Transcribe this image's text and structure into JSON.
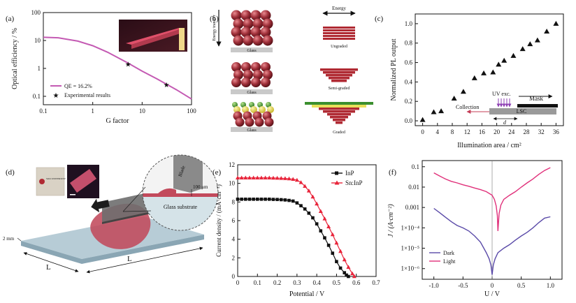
{
  "panels": {
    "a": {
      "letter": "(a)",
      "ylabel": "Optical efficiency / %",
      "xlabel": "G factor",
      "xticks": [
        "0.1",
        "1",
        "10",
        "100"
      ],
      "yticks": [
        "0.1",
        "1",
        "10",
        "100"
      ],
      "legend": [
        "QE = 16.2%",
        "Experimental results"
      ],
      "colors": {
        "line": "#c45ab3",
        "photo_bg": "#3a1420",
        "photo_slab": "#e0506a"
      }
    },
    "b": {
      "letter": "(b)",
      "energy_label": "Energy",
      "transfer_label": "Energy transfer",
      "glass_label": "Glass",
      "row_labels": [
        "Ungraded",
        "Semi-graded",
        "Graded"
      ],
      "colors": {
        "red": "#b02a33",
        "yellow": "#e9e15a",
        "green": "#3b8f2e",
        "sphere": "#a0303a"
      }
    },
    "c": {
      "letter": "(c)",
      "ylabel": "Normalized PL output",
      "xlabel": "Illumination area / cm²",
      "xticks": [
        "0",
        "4",
        "8",
        "12",
        "16",
        "20",
        "24",
        "28",
        "32",
        "36"
      ],
      "yticks": [
        "0.0",
        "0.2",
        "0.4",
        "0.6",
        "0.8",
        "1.0"
      ],
      "labels": {
        "uv": "UV exc.",
        "collection": "Collection",
        "mask": "Mask",
        "lsc": "LSC",
        "d": "d"
      },
      "colors": {
        "uv": "#8e3fb3",
        "collection": "#c43d56",
        "lsc": "#9a9a9a"
      }
    },
    "d": {
      "letter": "(d)",
      "blade": "Blade",
      "thickness": "100 μm",
      "substrate": "Glass substrate",
      "height": "2 mm",
      "length": "L",
      "logo_text": "SOO UNIVERSITY",
      "colors": {
        "glass_top": "#b7ccd6",
        "glass_side": "#8aa6b4",
        "film": "#c24a5c",
        "zoom_bg": "#d5e3e8"
      }
    },
    "e": {
      "letter": "(e)",
      "ylabel": "Current density / (mA·cm⁻²)",
      "xlabel": "Potential / V",
      "xticks": [
        "0",
        "0.1",
        "0.2",
        "0.3",
        "0.4",
        "0.5",
        "0.6",
        "0.7"
      ],
      "yticks": [
        "0",
        "2",
        "4",
        "6",
        "8",
        "10",
        "12"
      ],
      "legend": [
        "InP",
        "Sn:InP"
      ],
      "colors": {
        "inp": "#111111",
        "sninp": "#e8243a"
      }
    },
    "f": {
      "letter": "(f)",
      "ylabel": "J / (A·cm⁻²)",
      "xlabel": "U / V",
      "xticks": [
        "-1.0",
        "-0.5",
        "0",
        "0.5",
        "1.0"
      ],
      "yticks": [
        "0.1",
        "0.01",
        "0.001",
        "1×10⁻⁴",
        "1×10⁻⁵",
        "1×10⁻⁶"
      ],
      "legend": [
        "Dark",
        "Light"
      ],
      "colors": {
        "dark": "#5a4aa8",
        "light": "#e0307a"
      }
    }
  },
  "chart_data": [
    {
      "panel": "a",
      "type": "line",
      "xlabel": "G factor",
      "ylabel": "Optical efficiency / %",
      "xscale": "log",
      "yscale": "log",
      "xlim": [
        0.1,
        100
      ],
      "ylim": [
        0.05,
        100
      ],
      "series": [
        {
          "name": "QE = 16.2%",
          "x": [
            0.1,
            0.2,
            0.5,
            1,
            2,
            5,
            10,
            20,
            50,
            100
          ],
          "y": [
            13,
            12.5,
            9.5,
            6.5,
            3.8,
            1.6,
            0.8,
            0.42,
            0.17,
            0.08
          ]
        },
        {
          "name": "Experimental results",
          "x": [
            5.2,
            31
          ],
          "y": [
            1.4,
            0.26
          ]
        }
      ]
    },
    {
      "panel": "c",
      "type": "scatter",
      "xlabel": "Illumination area / cm²",
      "ylabel": "Normalized PL output",
      "xlim": [
        -2,
        38
      ],
      "ylim": [
        -0.05,
        1.1
      ],
      "x": [
        0,
        3,
        5,
        8.5,
        11,
        14,
        16.5,
        19,
        20.5,
        22,
        24.5,
        27,
        29,
        31,
        33.5,
        36
      ],
      "y": [
        0.01,
        0.09,
        0.1,
        0.23,
        0.3,
        0.44,
        0.49,
        0.5,
        0.58,
        0.62,
        0.67,
        0.74,
        0.79,
        0.83,
        0.92,
        1.0
      ]
    },
    {
      "panel": "e",
      "type": "line",
      "xlabel": "Potential / V",
      "ylabel": "Current density / (mA·cm⁻²)",
      "xlim": [
        0,
        0.7
      ],
      "ylim": [
        0,
        12
      ],
      "series": [
        {
          "name": "InP",
          "x": [
            0,
            0.02,
            0.04,
            0.06,
            0.08,
            0.1,
            0.12,
            0.14,
            0.16,
            0.18,
            0.2,
            0.22,
            0.24,
            0.26,
            0.28,
            0.3,
            0.32,
            0.34,
            0.36,
            0.38,
            0.4,
            0.42,
            0.44,
            0.46,
            0.48,
            0.5,
            0.52,
            0.54,
            0.55,
            0.56
          ],
          "y": [
            8.3,
            8.3,
            8.3,
            8.3,
            8.3,
            8.3,
            8.3,
            8.3,
            8.3,
            8.28,
            8.27,
            8.25,
            8.22,
            8.17,
            8.1,
            7.9,
            7.6,
            7.25,
            6.8,
            6.3,
            5.65,
            4.9,
            4.15,
            3.35,
            2.5,
            1.6,
            0.9,
            0.4,
            0.15,
            0
          ]
        },
        {
          "name": "Sn:InP",
          "x": [
            0,
            0.02,
            0.04,
            0.06,
            0.08,
            0.1,
            0.12,
            0.14,
            0.16,
            0.18,
            0.2,
            0.22,
            0.24,
            0.26,
            0.28,
            0.3,
            0.32,
            0.34,
            0.36,
            0.38,
            0.4,
            0.42,
            0.44,
            0.46,
            0.48,
            0.5,
            0.52,
            0.54,
            0.56,
            0.58,
            0.59
          ],
          "y": [
            10.6,
            10.6,
            10.6,
            10.6,
            10.6,
            10.6,
            10.6,
            10.6,
            10.6,
            10.58,
            10.57,
            10.55,
            10.53,
            10.5,
            10.45,
            10.35,
            10.1,
            9.7,
            9.2,
            8.55,
            7.8,
            7.0,
            6.2,
            5.35,
            4.5,
            3.6,
            2.7,
            1.8,
            1.0,
            0.3,
            0
          ]
        }
      ]
    },
    {
      "panel": "f",
      "type": "line",
      "xlabel": "U / V",
      "ylabel": "J / (A·cm⁻²)",
      "xlim": [
        -1.2,
        1.2
      ],
      "yscale": "log",
      "ylim": [
        3e-07,
        0.2
      ],
      "series": [
        {
          "name": "Dark",
          "x": [
            -1.0,
            -0.9,
            -0.8,
            -0.7,
            -0.6,
            -0.5,
            -0.4,
            -0.3,
            -0.2,
            -0.1,
            -0.05,
            -0.02,
            0,
            0.02,
            0.05,
            0.1,
            0.2,
            0.3,
            0.4,
            0.5,
            0.6,
            0.7,
            0.8,
            0.9,
            1.0
          ],
          "y": [
            0.0009,
            0.00055,
            0.00033,
            0.0002,
            0.00013,
            0.0001,
            7e-05,
            4e-05,
            2e-05,
            6e-06,
            3e-06,
            1.5e-06,
            5e-07,
            1.5e-06,
            3e-06,
            6e-06,
            1e-05,
            1.5e-05,
            2.5e-05,
            4e-05,
            6e-05,
            0.0001,
            0.00018,
            0.0003,
            0.00035
          ]
        },
        {
          "name": "Light",
          "x": [
            -1.0,
            -0.9,
            -0.8,
            -0.7,
            -0.6,
            -0.5,
            -0.4,
            -0.3,
            -0.2,
            -0.1,
            0,
            0.04,
            0.07,
            0.09,
            0.1,
            0.12,
            0.15,
            0.2,
            0.3,
            0.4,
            0.5,
            0.6,
            0.7,
            0.8,
            0.9,
            1.0
          ],
          "y": [
            0.05,
            0.035,
            0.025,
            0.019,
            0.016,
            0.013,
            0.011,
            0.009,
            0.0075,
            0.006,
            0.004,
            0.0025,
            0.0012,
            0.0004,
            7e-05,
            0.0005,
            0.0013,
            0.0025,
            0.004,
            0.006,
            0.01,
            0.016,
            0.025,
            0.042,
            0.065,
            0.09
          ]
        }
      ]
    }
  ]
}
